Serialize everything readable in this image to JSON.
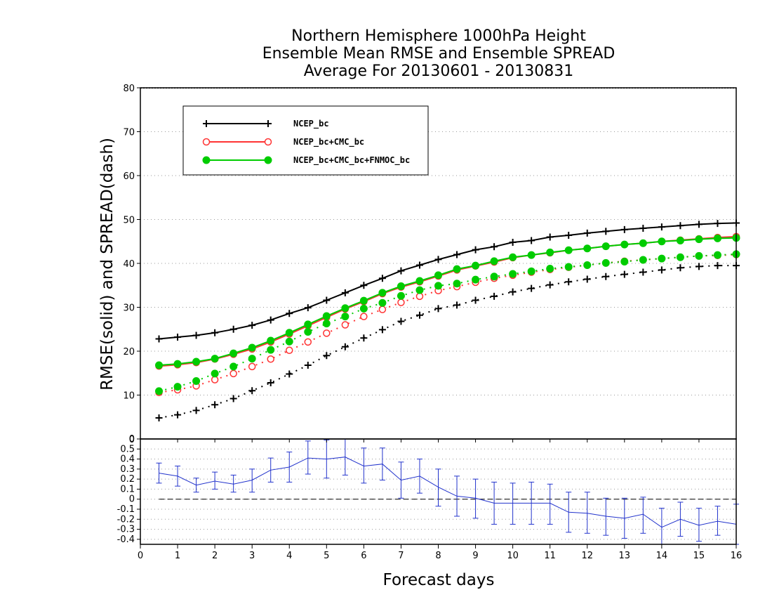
{
  "chart_data": {
    "type": "line",
    "title": [
      "Northern Hemisphere 1000hPa Height",
      "Ensemble Mean RMSE and Ensemble SPREAD",
      "Average For 20130601 - 20130831"
    ],
    "xlabel": "Forecast days",
    "ylabel": "RMSE(solid) and SPREAD(dash)",
    "xlim": [
      0,
      16
    ],
    "ylim": [
      0,
      80
    ],
    "x_ticks": [
      "0",
      "1",
      "2",
      "3",
      "4",
      "5",
      "6",
      "7",
      "8",
      "9",
      "10",
      "11",
      "12",
      "13",
      "14",
      "15",
      "16"
    ],
    "y_ticks": [
      "0",
      "10",
      "20",
      "30",
      "40",
      "50",
      "60",
      "70",
      "80"
    ],
    "grid": true,
    "legend": "top-left",
    "x": [
      0.5,
      1,
      1.5,
      2,
      2.5,
      3,
      3.5,
      4,
      4.5,
      5,
      5.5,
      6,
      6.5,
      7,
      7.5,
      8,
      8.5,
      9,
      9.5,
      10,
      10.5,
      11,
      11.5,
      12,
      12.5,
      13,
      13.5,
      14,
      14.5,
      15,
      15.5,
      16
    ],
    "series": [
      {
        "name": "NCEP_bc",
        "color": "#000000",
        "marker": "plus",
        "rmse": [
          22.8,
          23.2,
          23.6,
          24.2,
          25.0,
          25.9,
          27.1,
          28.6,
          29.9,
          31.6,
          33.3,
          35.0,
          36.6,
          38.3,
          39.6,
          40.9,
          42.0,
          43.1,
          43.8,
          44.8,
          45.2,
          46.0,
          46.4,
          46.9,
          47.3,
          47.7,
          48.0,
          48.3,
          48.6,
          48.9,
          49.1,
          49.2
        ],
        "spread": [
          4.8,
          5.5,
          6.5,
          7.8,
          9.2,
          11.0,
          12.8,
          14.8,
          16.8,
          19.0,
          21.0,
          23.0,
          24.9,
          26.8,
          28.2,
          29.7,
          30.5,
          31.6,
          32.5,
          33.5,
          34.3,
          35.1,
          35.8,
          36.4,
          37.0,
          37.5,
          38.0,
          38.5,
          39.0,
          39.3,
          39.5,
          39.5
        ]
      },
      {
        "name": "NCEP_bc+CMC_bc",
        "color": "#ff3333",
        "marker": "circle",
        "rmse": [
          16.6,
          16.9,
          17.4,
          18.2,
          19.3,
          20.5,
          22.1,
          23.9,
          25.8,
          27.7,
          29.6,
          31.3,
          33.1,
          34.6,
          35.8,
          37.1,
          38.5,
          39.4,
          40.3,
          41.3,
          41.9,
          42.4,
          43.0,
          43.4,
          43.9,
          44.3,
          44.6,
          45.0,
          45.3,
          45.6,
          45.9,
          46.1
        ],
        "spread": [
          10.6,
          11.2,
          12.1,
          13.5,
          14.9,
          16.5,
          18.2,
          20.2,
          22.1,
          24.1,
          26.0,
          27.9,
          29.5,
          31.1,
          32.5,
          33.8,
          34.7,
          35.7,
          36.6,
          37.3,
          38.0,
          38.6,
          39.1,
          39.6,
          40.1,
          40.5,
          40.8,
          41.1,
          41.4,
          41.7,
          41.8,
          42.0
        ]
      },
      {
        "name": "NCEP_bc+CMC_bc+FNMOC_bc",
        "color": "#00cc00",
        "marker": "dot",
        "rmse": [
          16.8,
          17.1,
          17.6,
          18.3,
          19.5,
          20.8,
          22.4,
          24.2,
          26.1,
          28.0,
          29.8,
          31.5,
          33.3,
          34.8,
          36.0,
          37.3,
          38.7,
          39.5,
          40.5,
          41.4,
          41.9,
          42.5,
          43.0,
          43.4,
          43.9,
          44.3,
          44.6,
          45.0,
          45.2,
          45.5,
          45.7,
          45.8
        ],
        "spread": [
          10.9,
          11.9,
          13.2,
          14.9,
          16.5,
          18.3,
          20.3,
          22.2,
          24.4,
          26.3,
          27.9,
          29.7,
          31.0,
          32.6,
          33.9,
          34.9,
          35.4,
          36.3,
          37.0,
          37.6,
          38.2,
          38.8,
          39.2,
          39.6,
          40.1,
          40.4,
          40.8,
          41.1,
          41.4,
          41.7,
          41.9,
          42.1
        ]
      }
    ],
    "difference_panel": {
      "ylim": [
        -0.45,
        0.6
      ],
      "y_ticks": [
        "-0.4",
        "-0.3",
        "-0.2",
        "-0.1",
        "0",
        "0.1",
        "0.2",
        "0.3",
        "0.4",
        "0.5"
      ],
      "zero_tick": "0",
      "color": "#2233cc",
      "values": [
        0.26,
        0.23,
        0.14,
        0.18,
        0.15,
        0.19,
        0.29,
        0.32,
        0.41,
        0.4,
        0.42,
        0.33,
        0.35,
        0.19,
        0.23,
        0.12,
        0.03,
        0.01,
        -0.04,
        -0.04,
        -0.04,
        -0.04,
        -0.13,
        -0.14,
        -0.17,
        -0.19,
        -0.15,
        -0.28,
        -0.2,
        -0.26,
        -0.22,
        -0.25
      ],
      "err_low": [
        0.16,
        0.13,
        0.07,
        0.1,
        0.07,
        0.07,
        0.17,
        0.17,
        0.25,
        0.21,
        0.24,
        0.16,
        0.19,
        0.01,
        0.06,
        -0.07,
        -0.17,
        -0.19,
        -0.25,
        -0.25,
        -0.25,
        -0.25,
        -0.33,
        -0.34,
        -0.36,
        -0.39,
        -0.34,
        -0.47,
        -0.37,
        -0.42,
        -0.36,
        -0.45
      ],
      "err_high": [
        0.36,
        0.33,
        0.21,
        0.27,
        0.24,
        0.3,
        0.41,
        0.47,
        0.58,
        0.59,
        0.6,
        0.51,
        0.51,
        0.37,
        0.4,
        0.3,
        0.23,
        0.2,
        0.17,
        0.16,
        0.17,
        0.15,
        0.07,
        0.07,
        0.01,
        0.01,
        0.02,
        -0.09,
        -0.03,
        -0.09,
        -0.07,
        -0.05
      ]
    }
  }
}
